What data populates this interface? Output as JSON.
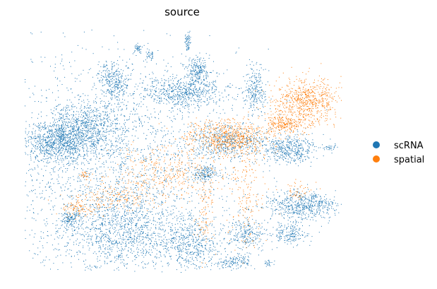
{
  "chart_data": {
    "type": "scatter",
    "title": "source",
    "xlabel": "",
    "ylabel": "",
    "grid": false,
    "axes_visible": false,
    "legend_position": "right",
    "series": [
      {
        "name": "scRNA",
        "color": "#1f77b4",
        "point_count_estimate": 30000
      },
      {
        "name": "spatial",
        "color": "#ff7f0e",
        "point_count_estimate": 3000
      }
    ]
  }
}
